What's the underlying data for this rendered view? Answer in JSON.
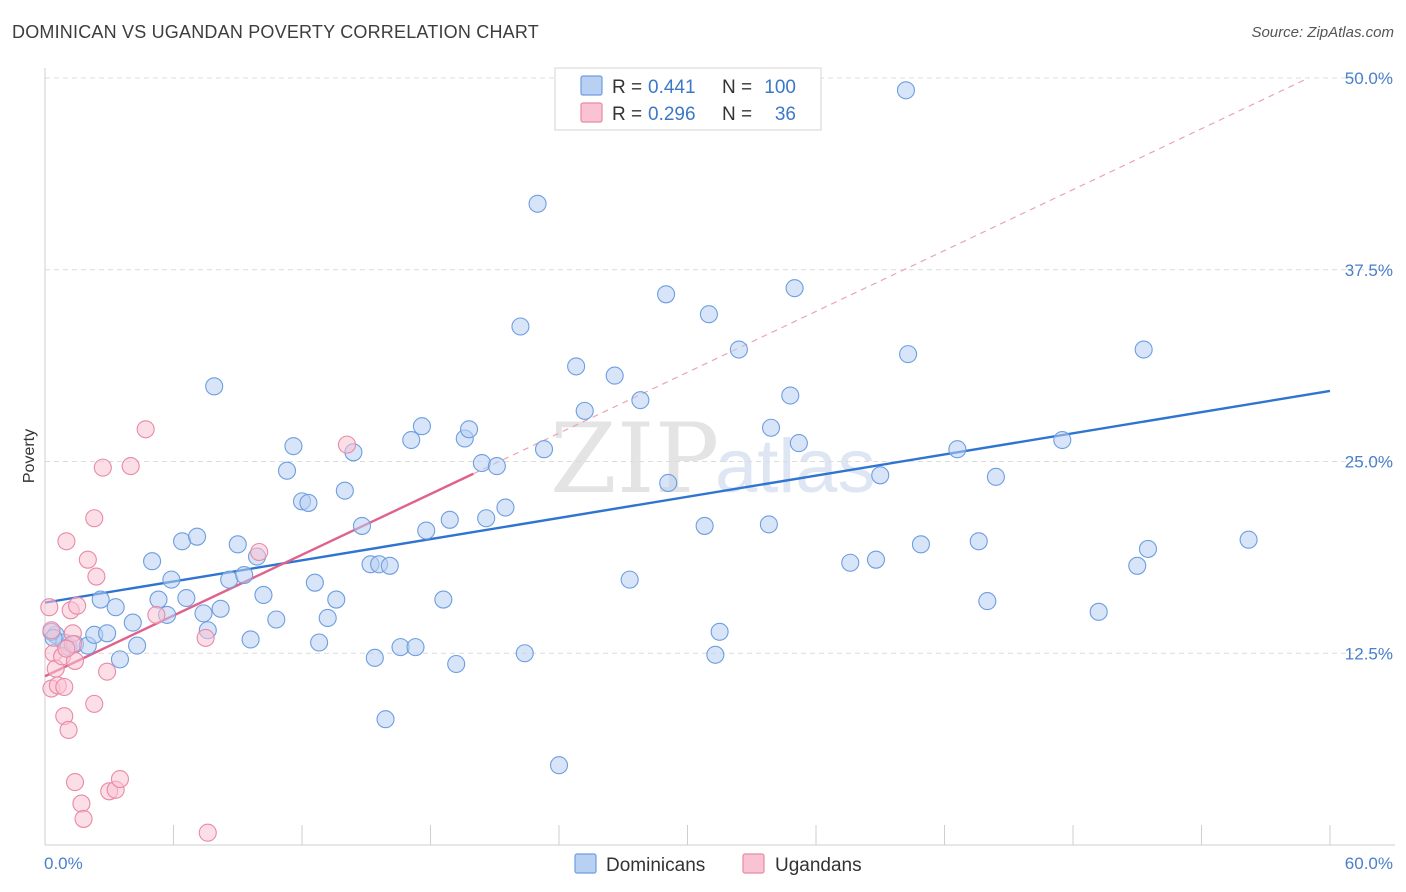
{
  "header": {
    "title": "DOMINICAN VS UGANDAN POVERTY CORRELATION CHART",
    "source": "Source: ZipAtlas.com"
  },
  "watermark": {
    "zip": "ZIP",
    "atlas": "atlas"
  },
  "legend": {
    "r_label": "R =",
    "n_label": "N =",
    "rows": [
      {
        "r": "0.441",
        "n": "100",
        "fill": "#b8d0f2",
        "stroke": "#6d9ee0"
      },
      {
        "r": "0.296",
        "n": "36",
        "fill": "#f9c3d4",
        "stroke": "#e88aa8"
      }
    ]
  },
  "chart_data": {
    "type": "scatter",
    "title": "DOMINICAN VS UGANDAN POVERTY CORRELATION CHART",
    "xlabel": "",
    "ylabel": "Poverty",
    "xlim": [
      0,
      60
    ],
    "ylim": [
      0,
      50
    ],
    "x_tick_labels": [
      "0.0%",
      "60.0%"
    ],
    "y_ticks": [
      12.5,
      25.0,
      37.5,
      50.0
    ],
    "y_tick_labels": [
      "12.5%",
      "25.0%",
      "37.5%",
      "50.0%"
    ],
    "grid": "horizontal dashed",
    "legend_position": "top-center",
    "series": [
      {
        "name": "Dominicans",
        "color": "#6d9ee0",
        "fill": "#b8d0f2",
        "trend": {
          "x": [
            0,
            60
          ],
          "y": [
            15.8,
            29.6
          ],
          "color": "#2e74d0"
        },
        "points": [
          [
            0.5,
            13.7
          ],
          [
            0.9,
            13.2
          ],
          [
            1.1,
            12.9
          ],
          [
            1.4,
            13.1
          ],
          [
            2.0,
            13.0
          ],
          [
            2.3,
            13.7
          ],
          [
            2.6,
            16.0
          ],
          [
            2.9,
            13.8
          ],
          [
            3.3,
            15.5
          ],
          [
            3.5,
            12.1
          ],
          [
            4.1,
            14.5
          ],
          [
            4.3,
            13.0
          ],
          [
            5.0,
            18.5
          ],
          [
            5.3,
            16.0
          ],
          [
            5.7,
            15.0
          ],
          [
            5.9,
            17.3
          ],
          [
            6.4,
            19.8
          ],
          [
            6.6,
            16.1
          ],
          [
            7.1,
            20.1
          ],
          [
            7.4,
            15.1
          ],
          [
            7.6,
            14.0
          ],
          [
            7.9,
            29.9
          ],
          [
            8.2,
            15.4
          ],
          [
            8.6,
            17.3
          ],
          [
            9.0,
            19.6
          ],
          [
            9.3,
            17.6
          ],
          [
            9.6,
            13.4
          ],
          [
            9.9,
            18.8
          ],
          [
            10.2,
            16.3
          ],
          [
            10.8,
            14.7
          ],
          [
            11.3,
            24.4
          ],
          [
            11.6,
            26.0
          ],
          [
            12.0,
            22.4
          ],
          [
            12.3,
            22.3
          ],
          [
            12.6,
            17.1
          ],
          [
            12.8,
            13.2
          ],
          [
            13.2,
            14.8
          ],
          [
            13.6,
            16.0
          ],
          [
            14.0,
            23.1
          ],
          [
            14.4,
            25.6
          ],
          [
            14.8,
            20.8
          ],
          [
            15.2,
            18.3
          ],
          [
            15.4,
            12.2
          ],
          [
            15.6,
            18.3
          ],
          [
            15.9,
            8.2
          ],
          [
            16.1,
            18.2
          ],
          [
            16.6,
            12.9
          ],
          [
            17.1,
            26.4
          ],
          [
            17.3,
            12.9
          ],
          [
            17.6,
            27.3
          ],
          [
            17.8,
            20.5
          ],
          [
            18.6,
            16.0
          ],
          [
            18.9,
            21.2
          ],
          [
            19.2,
            11.8
          ],
          [
            19.6,
            26.5
          ],
          [
            19.8,
            27.1
          ],
          [
            20.4,
            24.9
          ],
          [
            20.6,
            21.3
          ],
          [
            21.1,
            24.7
          ],
          [
            21.5,
            22.0
          ],
          [
            22.2,
            33.8
          ],
          [
            22.4,
            12.5
          ],
          [
            23.0,
            41.8
          ],
          [
            23.3,
            25.8
          ],
          [
            24.0,
            5.2
          ],
          [
            24.8,
            31.2
          ],
          [
            25.2,
            28.3
          ],
          [
            26.6,
            30.6
          ],
          [
            27.3,
            17.3
          ],
          [
            27.8,
            29.0
          ],
          [
            29.0,
            35.9
          ],
          [
            29.1,
            23.6
          ],
          [
            30.8,
            20.8
          ],
          [
            31.0,
            34.6
          ],
          [
            31.3,
            12.4
          ],
          [
            31.5,
            13.9
          ],
          [
            32.4,
            32.3
          ],
          [
            33.8,
            20.9
          ],
          [
            33.9,
            27.2
          ],
          [
            34.8,
            29.3
          ],
          [
            35.0,
            36.3
          ],
          [
            35.2,
            26.2
          ],
          [
            37.6,
            18.4
          ],
          [
            38.8,
            18.6
          ],
          [
            39.0,
            24.1
          ],
          [
            40.2,
            49.2
          ],
          [
            40.3,
            32.0
          ],
          [
            40.9,
            19.6
          ],
          [
            42.6,
            25.8
          ],
          [
            43.6,
            19.8
          ],
          [
            44.0,
            15.9
          ],
          [
            44.4,
            24.0
          ],
          [
            47.5,
            26.4
          ],
          [
            49.2,
            15.2
          ],
          [
            51.0,
            18.2
          ],
          [
            51.3,
            32.3
          ],
          [
            51.5,
            19.3
          ],
          [
            56.2,
            19.9
          ],
          [
            0.3,
            13.9
          ],
          [
            0.4,
            13.5
          ]
        ]
      },
      {
        "name": "Ugandans",
        "color": "#e88aa8",
        "fill": "#f9c3d4",
        "trend": {
          "x": [
            0,
            20
          ],
          "y": [
            11.0,
            24.2
          ],
          "color": "#e0628c",
          "extension": {
            "x": [
              20,
              59
            ],
            "y": [
              24.2,
              50.0
            ],
            "style": "dashed"
          }
        },
        "points": [
          [
            0.2,
            15.5
          ],
          [
            0.3,
            14.0
          ],
          [
            0.4,
            12.5
          ],
          [
            0.5,
            11.5
          ],
          [
            0.3,
            10.2
          ],
          [
            0.6,
            10.4
          ],
          [
            0.8,
            12.3
          ],
          [
            0.9,
            10.3
          ],
          [
            0.9,
            8.4
          ],
          [
            1.0,
            19.8
          ],
          [
            1.1,
            7.5
          ],
          [
            1.2,
            15.3
          ],
          [
            1.3,
            13.8
          ],
          [
            1.3,
            13.1
          ],
          [
            1.4,
            12.0
          ],
          [
            1.4,
            4.1
          ],
          [
            1.5,
            15.6
          ],
          [
            1.7,
            2.7
          ],
          [
            1.8,
            1.7
          ],
          [
            2.0,
            18.6
          ],
          [
            2.3,
            21.3
          ],
          [
            2.3,
            9.2
          ],
          [
            2.4,
            17.5
          ],
          [
            2.7,
            24.6
          ],
          [
            2.9,
            11.3
          ],
          [
            3.0,
            3.5
          ],
          [
            3.3,
            3.6
          ],
          [
            3.5,
            4.3
          ],
          [
            4.0,
            24.7
          ],
          [
            4.7,
            27.1
          ],
          [
            5.2,
            15.0
          ],
          [
            7.5,
            13.5
          ],
          [
            7.6,
            0.8
          ],
          [
            10.0,
            19.1
          ],
          [
            14.1,
            26.1
          ],
          [
            1.0,
            12.8
          ]
        ]
      }
    ]
  }
}
